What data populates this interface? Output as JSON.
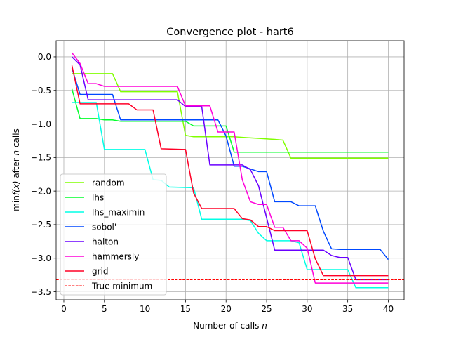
{
  "chart_data": {
    "type": "line",
    "title": "Convergence plot - hart6",
    "xlabel_pre": "Number of calls ",
    "xlabel_var": "n",
    "ylabel_pre": "min",
    "ylabel_fx": "f(x)",
    "ylabel_mid": " after ",
    "ylabel_var": "n",
    "ylabel_post": " calls",
    "xlim": [
      -0.95,
      41.95
    ],
    "ylim": [
      -3.62,
      0.24
    ],
    "xticks": [
      0,
      5,
      10,
      15,
      20,
      25,
      30,
      35,
      40
    ],
    "yticks": [
      0.0,
      -0.5,
      -1.0,
      -1.5,
      -2.0,
      -2.5,
      -3.0,
      -3.5
    ],
    "ytick_labels": [
      "0.0",
      "−0.5",
      "−1.0",
      "−1.5",
      "−2.0",
      "−2.5",
      "−3.0",
      "−3.5"
    ],
    "grid": true,
    "legend_position": "lower-left",
    "series": [
      {
        "name": "random",
        "color": "#80ff00",
        "points": [
          [
            1,
            -0.25
          ],
          [
            6,
            -0.25
          ],
          [
            7,
            -0.52
          ],
          [
            14,
            -0.52
          ],
          [
            15,
            -1.17
          ],
          [
            16,
            -1.19
          ],
          [
            21,
            -1.19
          ],
          [
            22,
            -1.2
          ],
          [
            26,
            -1.23
          ],
          [
            27,
            -1.24
          ],
          [
            28,
            -1.51
          ],
          [
            40,
            -1.51
          ]
        ]
      },
      {
        "name": "lhs",
        "color": "#00ff2a",
        "points": [
          [
            1,
            -0.48
          ],
          [
            2,
            -0.92
          ],
          [
            4,
            -0.92
          ],
          [
            5,
            -0.94
          ],
          [
            6,
            -0.94
          ],
          [
            7,
            -0.96
          ],
          [
            15,
            -0.96
          ],
          [
            16,
            -1.03
          ],
          [
            20,
            -1.03
          ],
          [
            21,
            -1.42
          ],
          [
            40,
            -1.42
          ]
        ]
      },
      {
        "name": "lhs_maximin",
        "color": "#00ffe6",
        "points": [
          [
            1,
            -0.68
          ],
          [
            2,
            -0.68
          ],
          [
            3,
            -0.68
          ],
          [
            4,
            -0.68
          ],
          [
            5,
            -1.38
          ],
          [
            10,
            -1.38
          ],
          [
            11,
            -1.83
          ],
          [
            12,
            -1.84
          ],
          [
            13,
            -1.94
          ],
          [
            16,
            -1.95
          ],
          [
            17,
            -2.42
          ],
          [
            22,
            -2.42
          ],
          [
            23,
            -2.44
          ],
          [
            24,
            -2.63
          ],
          [
            25,
            -2.74
          ],
          [
            28,
            -2.74
          ],
          [
            29,
            -2.77
          ],
          [
            30,
            -3.17
          ],
          [
            35,
            -3.17
          ],
          [
            36,
            -3.44
          ],
          [
            40,
            -3.44
          ]
        ]
      },
      {
        "name": "sobol'",
        "color": "#0049ff",
        "points": [
          [
            1,
            -0.17
          ],
          [
            2,
            -0.56
          ],
          [
            5,
            -0.56
          ],
          [
            6,
            -0.56
          ],
          [
            7,
            -0.94
          ],
          [
            19,
            -0.94
          ],
          [
            20,
            -1.18
          ],
          [
            21,
            -1.63
          ],
          [
            22,
            -1.63
          ],
          [
            24,
            -1.71
          ],
          [
            25,
            -1.71
          ],
          [
            26,
            -2.16
          ],
          [
            28,
            -2.16
          ],
          [
            29,
            -2.22
          ],
          [
            31,
            -2.22
          ],
          [
            32,
            -2.6
          ],
          [
            33,
            -2.86
          ],
          [
            34,
            -2.87
          ],
          [
            39,
            -2.87
          ],
          [
            40,
            -3.02
          ]
        ]
      },
      {
        "name": "halton",
        "color": "#6a00ff",
        "points": [
          [
            1,
            0.0
          ],
          [
            2,
            -0.12
          ],
          [
            3,
            -0.64
          ],
          [
            14,
            -0.64
          ],
          [
            15,
            -0.74
          ],
          [
            17,
            -0.74
          ],
          [
            18,
            -1.61
          ],
          [
            22,
            -1.61
          ],
          [
            23,
            -1.68
          ],
          [
            24,
            -1.92
          ],
          [
            25,
            -2.4
          ],
          [
            26,
            -2.88
          ],
          [
            32,
            -2.88
          ],
          [
            33,
            -2.96
          ],
          [
            34,
            -2.99
          ],
          [
            35,
            -2.99
          ],
          [
            36,
            -3.32
          ],
          [
            40,
            -3.32
          ]
        ]
      },
      {
        "name": "hammersly",
        "color": "#ff00d9",
        "points": [
          [
            1,
            0.06
          ],
          [
            2,
            -0.1
          ],
          [
            3,
            -0.4
          ],
          [
            4,
            -0.4
          ],
          [
            5,
            -0.44
          ],
          [
            14,
            -0.44
          ],
          [
            15,
            -0.73
          ],
          [
            18,
            -0.73
          ],
          [
            19,
            -1.12
          ],
          [
            21,
            -1.12
          ],
          [
            22,
            -1.83
          ],
          [
            23,
            -2.16
          ],
          [
            24,
            -2.2
          ],
          [
            25,
            -2.2
          ],
          [
            26,
            -2.54
          ],
          [
            27,
            -2.54
          ],
          [
            28,
            -2.74
          ],
          [
            29,
            -2.74
          ],
          [
            30,
            -2.85
          ],
          [
            31,
            -3.37
          ],
          [
            40,
            -3.37
          ]
        ]
      },
      {
        "name": "grid",
        "color": "#ff0027",
        "points": [
          [
            1,
            -0.13
          ],
          [
            2,
            -0.7
          ],
          [
            8,
            -0.7
          ],
          [
            9,
            -0.79
          ],
          [
            11,
            -0.79
          ],
          [
            12,
            -1.37
          ],
          [
            15,
            -1.38
          ],
          [
            16,
            -2.03
          ],
          [
            17,
            -2.26
          ],
          [
            21,
            -2.26
          ],
          [
            22,
            -2.41
          ],
          [
            23,
            -2.43
          ],
          [
            24,
            -2.53
          ],
          [
            25,
            -2.53
          ],
          [
            26,
            -2.59
          ],
          [
            30,
            -2.59
          ],
          [
            31,
            -3.01
          ],
          [
            32,
            -3.26
          ],
          [
            40,
            -3.26
          ]
        ]
      }
    ],
    "reference_line": {
      "name": "True minimum",
      "value": -3.32237,
      "color": "#ff0000"
    }
  }
}
